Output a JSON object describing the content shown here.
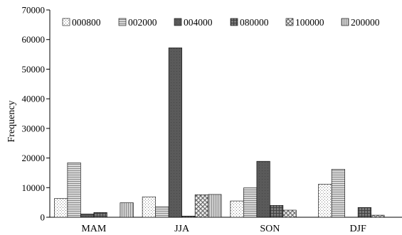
{
  "chart_data": {
    "type": "bar",
    "title": "",
    "xlabel": "",
    "ylabel": "Frequency",
    "ylim": [
      0,
      70000
    ],
    "yticks": [
      0,
      10000,
      20000,
      30000,
      40000,
      50000,
      60000,
      70000
    ],
    "categories": [
      "MAM",
      "JJA",
      "SON",
      "DJF"
    ],
    "grid": false,
    "legend_position": "top",
    "series": [
      {
        "name": "000800",
        "values": [
          6300,
          6900,
          5500,
          11200
        ],
        "pattern": "dots"
      },
      {
        "name": "002000",
        "values": [
          18400,
          3500,
          9900,
          16200
        ],
        "pattern": "hlines"
      },
      {
        "name": "004000",
        "values": [
          1100,
          57200,
          18900,
          0
        ],
        "pattern": "dark"
      },
      {
        "name": "080000",
        "values": [
          1600,
          400,
          4000,
          3300
        ],
        "pattern": "darkgrid"
      },
      {
        "name": "100000",
        "values": [
          0,
          7600,
          2400,
          700
        ],
        "pattern": "checker"
      },
      {
        "name": "200000",
        "values": [
          4900,
          7700,
          0,
          0
        ],
        "pattern": "vlines"
      }
    ]
  }
}
